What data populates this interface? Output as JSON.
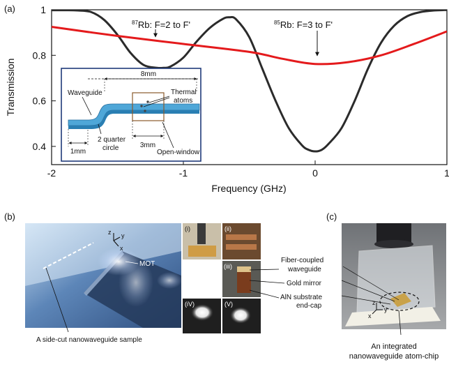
{
  "panel_labels": {
    "a": "(a)",
    "b": "(b)",
    "c": "(c)"
  },
  "chart_data": {
    "type": "line",
    "xlabel": "Frequency (GHz)",
    "ylabel": "Transmission",
    "xlim": [
      -2,
      1
    ],
    "ylim": [
      0.32,
      1.0
    ],
    "x_ticks": [
      "-2",
      "-1",
      "0",
      "1"
    ],
    "y_ticks": [
      "1",
      "0.8",
      "0.6",
      "0.4"
    ],
    "x_tick_values": [
      -2,
      -1,
      0,
      1
    ],
    "y_tick_values": [
      1.0,
      0.8,
      0.6,
      0.4
    ],
    "grid": false,
    "series": [
      {
        "color": "#2b2b2b",
        "x": [
          -2.0,
          -1.9,
          -1.8,
          -1.7,
          -1.6,
          -1.5,
          -1.4,
          -1.3,
          -1.2,
          -1.15,
          -1.1,
          -1.0,
          -0.9,
          -0.8,
          -0.7,
          -0.65,
          -0.6,
          -0.5,
          -0.4,
          -0.3,
          -0.2,
          -0.1,
          -0.05,
          0.0,
          0.05,
          0.1,
          0.2,
          0.3,
          0.4,
          0.5,
          0.6,
          0.7,
          0.8,
          0.9,
          1.0
        ],
        "y": [
          0.998,
          0.998,
          0.997,
          0.99,
          0.955,
          0.89,
          0.81,
          0.757,
          0.745,
          0.745,
          0.75,
          0.79,
          0.86,
          0.92,
          0.96,
          0.967,
          0.958,
          0.88,
          0.74,
          0.6,
          0.48,
          0.405,
          0.385,
          0.378,
          0.385,
          0.41,
          0.48,
          0.6,
          0.74,
          0.855,
          0.93,
          0.972,
          0.99,
          0.997,
          0.999
        ]
      },
      {
        "color": "#e41a1c",
        "x": [
          -2.0,
          -1.5,
          -1.0,
          -0.5,
          -0.25,
          0.0,
          0.25,
          0.5,
          0.75,
          1.0
        ],
        "y": [
          0.925,
          0.885,
          0.85,
          0.815,
          0.785,
          0.762,
          0.77,
          0.8,
          0.85,
          0.905
        ]
      }
    ],
    "annotations": [
      {
        "text_pre": "87",
        "text": "Rb: F=2 to F'",
        "x": -1.2,
        "y": 0.95,
        "arrow_to_y": 0.925
      },
      {
        "text_pre": "85",
        "text": "Rb: F=3 to F'",
        "x": 0.0,
        "y": 0.95,
        "arrow_to_y": 0.77
      }
    ]
  },
  "inset": {
    "dimension_top": "8mm",
    "label_waveguide": "Waveguide",
    "label_thermal_1": "Thermal",
    "label_thermal_2": "atoms",
    "label_circle_1": "2 quarter",
    "label_circle_2": "circle",
    "label_1mm": "1mm",
    "label_3mm": "3mm",
    "label_open_window": "Open-window"
  },
  "panel_b": {
    "axis_z": "z",
    "axis_y": "y",
    "axis_x": "x",
    "mot_label": "MOT",
    "caption": "A side-cut nanowaveguide sample",
    "sub_i": "(i)",
    "sub_ii": "(ii)",
    "sub_iii": "(iii)",
    "sub_iv": "(iV)",
    "sub_v": "(V)",
    "callout_fiber_1": "Fiber-coupled",
    "callout_fiber_2": "waveguide",
    "callout_gold": "Gold mirror",
    "callout_aln_1": "AlN substrate",
    "callout_aln_2": "end-cap"
  },
  "panel_c": {
    "caption_1": "An integrated",
    "caption_2": "nanowaveguide atom-chip",
    "axis_z": "z",
    "axis_y": "y",
    "axis_x": "x"
  }
}
